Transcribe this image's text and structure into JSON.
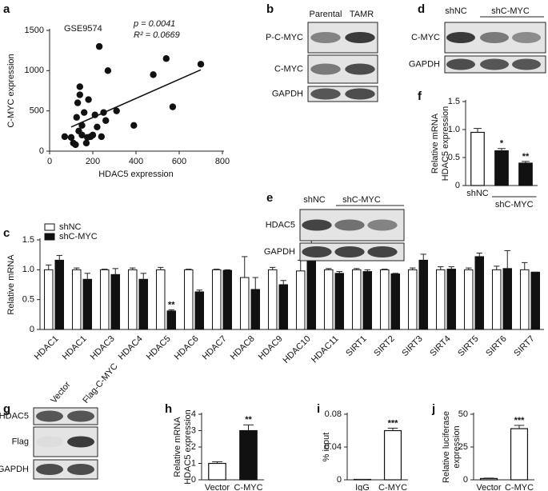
{
  "chart_data": [
    {
      "panel": "a",
      "type": "scatter",
      "x_label": "HDAC5 expression",
      "y_label": [
        "C-MYC expression"
      ],
      "annotations": [
        "GSE9574",
        "p = 0.0041",
        "R² = 0.0669"
      ],
      "x": [
        70,
        100,
        110,
        120,
        125,
        130,
        135,
        140,
        140,
        150,
        150,
        160,
        170,
        175,
        180,
        190,
        200,
        210,
        220,
        230,
        240,
        250,
        260,
        270,
        310,
        390,
        480,
        540,
        570,
        700
      ],
      "y": [
        180,
        170,
        100,
        80,
        420,
        600,
        250,
        700,
        800,
        320,
        200,
        480,
        100,
        170,
        640,
        180,
        200,
        450,
        300,
        1300,
        180,
        480,
        380,
        1000,
        500,
        320,
        950,
        1150,
        550,
        1080
      ],
      "trend_line": {
        "x": [
          100,
          700
        ],
        "y": [
          300,
          1010
        ]
      },
      "color": "#111111",
      "xlim": [
        0,
        800
      ],
      "xticks": [
        0,
        200,
        400,
        600,
        800
      ],
      "ylim": [
        0,
        1500
      ],
      "yticks": [
        0,
        500,
        1000,
        1500
      ]
    },
    {
      "panel": "f",
      "type": "bar",
      "y_label": [
        "Relative mRNA",
        "HDAC5 expression"
      ],
      "categories": [
        "shNC",
        null,
        null
      ],
      "group_label": "shC-MYC",
      "series": [
        {
          "colors": [
            "#ffffff",
            "#111111",
            "#111111"
          ],
          "values": [
            0.95,
            0.62,
            0.4
          ],
          "errors": [
            0.07,
            0.04,
            0.03
          ],
          "significance": [
            null,
            "*",
            "**"
          ]
        }
      ],
      "ylim": [
        0,
        1.5
      ],
      "yticks": [
        0,
        0.5,
        {
          "value": 1,
          "label": "1.0"
        },
        1.5
      ]
    },
    {
      "panel": "c",
      "type": "grouped_bar",
      "y_label": [
        "Relative mRNA"
      ],
      "legend": "top-left",
      "categories": [
        "HDAC1",
        "HDAC1",
        "HDAC3",
        "HDAC4",
        "HDAC5",
        "HDAC6",
        "HDAC7",
        "HDAC8",
        "HDAC9",
        "HDAC10",
        "HDAC11",
        "SIRT1",
        "SIRT2",
        "SIRT3",
        "SIRT4",
        "SIRT5",
        "SIRT6",
        "SIRT7"
      ],
      "series": [
        {
          "name": "shNC",
          "color": "#ffffff",
          "values": [
            1.0,
            1.0,
            1.0,
            1.0,
            1.0,
            1.0,
            1.0,
            0.87,
            1.0,
            0.98,
            1.0,
            1.0,
            1.0,
            1.0,
            1.0,
            1.0,
            1.0,
            1.0
          ],
          "errors": [
            0.08,
            0.03,
            0.01,
            0.03,
            0.04,
            0.01,
            0.01,
            0.35,
            0.04,
            0.18,
            0.02,
            0.02,
            0.01,
            0.03,
            0.05,
            0.03,
            0.06,
            0.12
          ]
        },
        {
          "name": "shC-MYC",
          "color": "#111111",
          "values": [
            1.16,
            0.84,
            0.92,
            0.84,
            0.31,
            0.63,
            0.99,
            0.67,
            0.75,
            1.28,
            0.94,
            0.97,
            0.93,
            1.16,
            1.01,
            1.22,
            1.02,
            0.96
          ],
          "errors": [
            0.08,
            0.1,
            0.1,
            0.1,
            0.02,
            0.03,
            0.01,
            0.2,
            0.07,
            0.26,
            0.03,
            0.03,
            0.01,
            0.1,
            0.04,
            0.06,
            0.3,
            0
          ],
          "significance": [
            null,
            null,
            null,
            null,
            "**",
            null,
            null,
            null,
            null,
            null,
            null,
            null,
            null,
            null,
            null,
            null,
            null,
            null
          ]
        }
      ],
      "ylim": [
        0,
        1.5
      ],
      "yticks": [
        0,
        0.5,
        {
          "value": 1,
          "label": "1.0"
        },
        1.5
      ]
    },
    {
      "panel": "h",
      "type": "bar",
      "y_label": [
        "Relative mRNA",
        "HDAC5 expression"
      ],
      "categories": [
        "Vector",
        "C-MYC"
      ],
      "series": [
        {
          "colors": [
            "#ffffff",
            "#111111"
          ],
          "values": [
            1.0,
            3.0
          ],
          "errors": [
            0.1,
            0.35
          ],
          "significance": [
            null,
            "**"
          ]
        }
      ],
      "ylim": [
        0,
        4
      ],
      "yticks": [
        0,
        1,
        2,
        3,
        4
      ]
    },
    {
      "panel": "i",
      "type": "bar",
      "y_label": [
        "% input"
      ],
      "categories": [
        "IgG",
        "C-MYC"
      ],
      "series": [
        {
          "colors": [
            "#ffffff",
            "#ffffff"
          ],
          "values": [
            0.0005,
            0.06
          ],
          "errors": [
            0,
            0.003
          ],
          "significance": [
            null,
            "***"
          ]
        }
      ],
      "ylim": [
        0,
        0.08
      ],
      "yticks": [
        0,
        0.04,
        0.08
      ]
    },
    {
      "panel": "j",
      "type": "bar",
      "y_label": [
        "Relative luciferase",
        "expression"
      ],
      "categories": [
        "Vector",
        "C-MYC"
      ],
      "series": [
        {
          "colors": [
            "#ffffff",
            "#ffffff"
          ],
          "values": [
            1,
            39
          ],
          "errors": [
            0.3,
            2.5
          ],
          "significance": [
            null,
            "***"
          ]
        }
      ],
      "ylim": [
        0,
        50
      ],
      "yticks": [
        0,
        25,
        50
      ]
    }
  ],
  "blots": [
    {
      "panel": "b",
      "columns": [
        "Parental",
        "TAMR"
      ],
      "rows": [
        "P-C-MYC",
        "C-MYC",
        "GAPDH"
      ]
    },
    {
      "panel": "d",
      "columns": [
        "shNC",
        "shC-MYC"
      ],
      "rows": [
        "C-MYC",
        "GAPDH"
      ]
    },
    {
      "panel": "e",
      "columns": [
        "shNC",
        "shC-MYC"
      ],
      "rows": [
        "HDAC5",
        "GAPDH"
      ]
    },
    {
      "panel": "g",
      "columns": [
        "Vector",
        "Flag-C-MYC"
      ],
      "rows": [
        "HDAC5",
        "Flag",
        "GAPDH"
      ]
    }
  ]
}
